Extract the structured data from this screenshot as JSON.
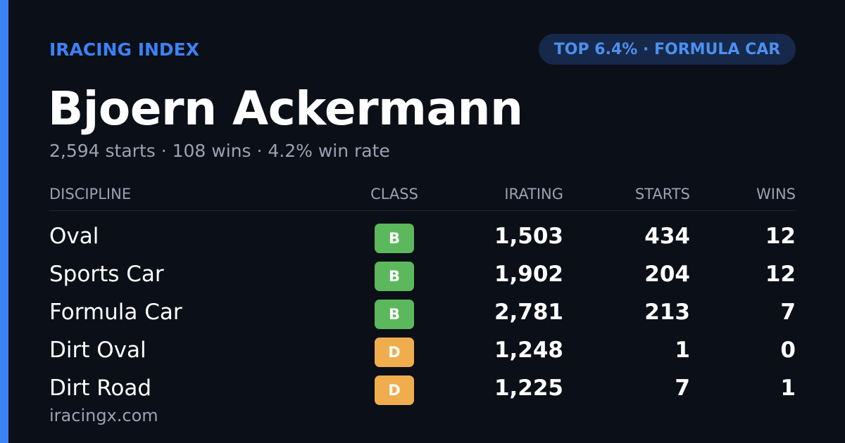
{
  "header": {
    "brand": "IRACING INDEX",
    "badge": "TOP 6.4% · FORMULA CAR",
    "name": "Bjoern Ackermann",
    "summary": "2,594 starts · 108 wins · 4.2% win rate"
  },
  "table": {
    "columns": [
      "DISCIPLINE",
      "CLASS",
      "IRATING",
      "STARTS",
      "WINS"
    ],
    "rows": [
      {
        "discipline": "Oval",
        "class": "B",
        "class_color": "#5cb85c",
        "irating": "1,503",
        "starts": "434",
        "wins": "12"
      },
      {
        "discipline": "Sports Car",
        "class": "B",
        "class_color": "#5cb85c",
        "irating": "1,902",
        "starts": "204",
        "wins": "12"
      },
      {
        "discipline": "Formula Car",
        "class": "B",
        "class_color": "#5cb85c",
        "irating": "2,781",
        "starts": "213",
        "wins": "7"
      },
      {
        "discipline": "Dirt Oval",
        "class": "D",
        "class_color": "#f0ad4e",
        "irating": "1,248",
        "starts": "1",
        "wins": "0"
      },
      {
        "discipline": "Dirt Road",
        "class": "D",
        "class_color": "#f0ad4e",
        "irating": "1,225",
        "starts": "7",
        "wins": "1"
      }
    ]
  },
  "footer": {
    "site": "iracingx.com"
  }
}
